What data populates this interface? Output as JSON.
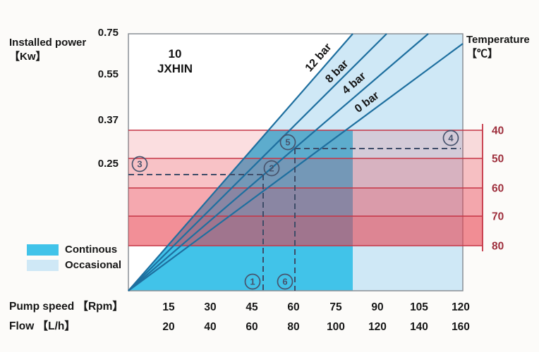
{
  "chart_data": {
    "type": "line",
    "model": {
      "line1": "10",
      "line2": "JXHIN"
    },
    "y_axis": {
      "label_line1": "Installed power",
      "label_line2": "【Kw】",
      "ticks": [
        "0.75",
        "0.55",
        "0.37",
        "0.25"
      ]
    },
    "y2_axis": {
      "label_line1": "Temperature",
      "label_line2": "【℃】",
      "ticks": [
        "40",
        "50",
        "60",
        "70",
        "80"
      ]
    },
    "x_axis_rpm": {
      "label": "Pump speed 【Rpm】",
      "ticks": [
        "15",
        "30",
        "45",
        "60",
        "75",
        "90",
        "105",
        "120"
      ],
      "range": [
        0,
        120
      ]
    },
    "x_axis_flow": {
      "label": "Flow 【L/h】",
      "ticks": [
        "20",
        "40",
        "60",
        "80",
        "100",
        "120",
        "140",
        "160"
      ],
      "range": [
        0,
        160
      ]
    },
    "series": [
      {
        "name": "12 bar",
        "from_origin": true
      },
      {
        "name": "8 bar",
        "from_origin": true
      },
      {
        "name": "4 bar",
        "from_origin": true
      },
      {
        "name": "0 bar",
        "from_origin": true
      }
    ],
    "temperature_bands": [
      [
        40,
        50
      ],
      [
        50,
        60
      ],
      [
        60,
        70
      ],
      [
        70,
        80
      ]
    ],
    "legend": [
      {
        "label": "Continous",
        "color": "#41c3e9"
      },
      {
        "label": "Occasional",
        "color": "#cfe8f6"
      }
    ],
    "markers": [
      "1",
      "2",
      "3",
      "4",
      "5",
      "6"
    ],
    "colors": {
      "continuous_fill": "#41c3e9",
      "occasional_fill": "#cfe8f6",
      "pressure_line": "#1e6f9f",
      "temperature_band_red": "#e83a48",
      "temperature_line": "#c53545",
      "temperature_text": "#9e2f3d",
      "dashed_guide": "#3e4c68",
      "marker_outline": "#47536d",
      "plot_border": "#8a8f96",
      "text": "#161616"
    }
  }
}
